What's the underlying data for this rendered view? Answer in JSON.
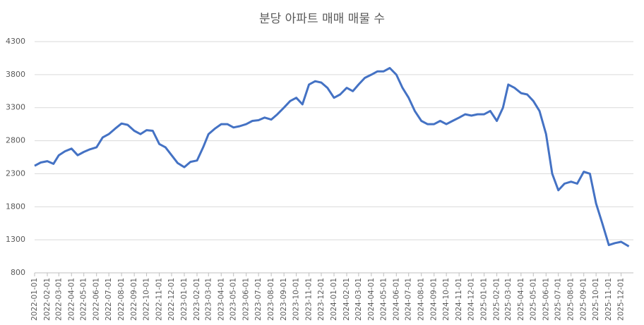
{
  "chart_data": {
    "type": "line",
    "title": "분당 아파트 매매 매물 수",
    "x": [
      "2022-01-01",
      "2022-01-16",
      "2022-02-01",
      "2022-02-16",
      "2022-03-01",
      "2022-03-16",
      "2022-04-01",
      "2022-04-16",
      "2022-05-01",
      "2022-05-16",
      "2022-06-01",
      "2022-06-16",
      "2022-07-01",
      "2022-07-16",
      "2022-08-01",
      "2022-08-16",
      "2022-09-01",
      "2022-09-16",
      "2022-10-01",
      "2022-10-16",
      "2022-11-01",
      "2022-11-16",
      "2022-12-01",
      "2022-12-16",
      "2023-01-01",
      "2023-01-16",
      "2023-02-01",
      "2023-02-16",
      "2023-03-01",
      "2023-03-16",
      "2023-04-01",
      "2023-04-16",
      "2023-05-01",
      "2023-05-16",
      "2023-06-01",
      "2023-06-16",
      "2023-07-01",
      "2023-07-16",
      "2023-08-01",
      "2023-08-16",
      "2023-09-01",
      "2023-09-16",
      "2023-10-01",
      "2023-10-16",
      "2023-11-01",
      "2023-11-16",
      "2023-12-01",
      "2023-12-16",
      "2024-01-01",
      "2024-01-16",
      "2024-02-01",
      "2024-02-16",
      "2024-03-01",
      "2024-03-16",
      "2024-04-01",
      "2024-04-16",
      "2024-05-01",
      "2024-05-16",
      "2024-06-01",
      "2024-06-16",
      "2024-07-01",
      "2024-07-16",
      "2024-08-01",
      "2024-08-16",
      "2024-09-01",
      "2024-09-16",
      "2024-10-01",
      "2024-10-16",
      "2024-11-01",
      "2024-11-16",
      "2024-12-01",
      "2024-12-16",
      "2025-01-01",
      "2025-01-16",
      "2025-02-01",
      "2025-02-16",
      "2025-03-01",
      "2025-03-16",
      "2025-04-01",
      "2025-04-16",
      "2025-05-01",
      "2025-05-16",
      "2025-06-01",
      "2025-06-16",
      "2025-07-01",
      "2025-07-16",
      "2025-08-01",
      "2025-08-16",
      "2025-09-01",
      "2025-09-16",
      "2025-10-01",
      "2025-10-16",
      "2025-11-01",
      "2025-11-16",
      "2025-12-01",
      "2025-12-20"
    ],
    "series": [
      {
        "name": "매물 수",
        "color": "#4472c4",
        "values": [
          2420,
          2470,
          2490,
          2450,
          2580,
          2640,
          2680,
          2580,
          2630,
          2670,
          2700,
          2850,
          2900,
          2980,
          3060,
          3040,
          2950,
          2900,
          2960,
          2950,
          2750,
          2700,
          2580,
          2460,
          2400,
          2480,
          2500,
          2700,
          2900,
          2980,
          3050,
          3050,
          3000,
          3020,
          3050,
          3100,
          3110,
          3150,
          3120,
          3200,
          3300,
          3400,
          3450,
          3350,
          3650,
          3700,
          3680,
          3600,
          3450,
          3500,
          3600,
          3550,
          3650,
          3750,
          3800,
          3850,
          3850,
          3900,
          3800,
          3600,
          3450,
          3250,
          3100,
          3050,
          3050,
          3100,
          3050,
          3100,
          3150,
          3200,
          3180,
          3200,
          3200,
          3250,
          3100,
          3300,
          3650,
          3600,
          3520,
          3500,
          3400,
          3250,
          2900,
          2300,
          2050,
          2150,
          2180,
          2150,
          2330,
          2300,
          1850,
          1550,
          1220,
          1250,
          1270,
          1200
        ]
      }
    ],
    "xlim": [
      "2022-01-01",
      "2025-12-31"
    ],
    "xticks": [
      "2022-01-01",
      "2022-02-01",
      "2022-03-01",
      "2022-04-01",
      "2022-05-01",
      "2022-06-01",
      "2022-07-01",
      "2022-08-01",
      "2022-09-01",
      "2022-10-01",
      "2022-11-01",
      "2022-12-01",
      "2023-01-01",
      "2023-02-01",
      "2023-03-01",
      "2023-04-01",
      "2023-05-01",
      "2023-06-01",
      "2023-07-01",
      "2023-08-01",
      "2023-09-01",
      "2023-10-01",
      "2023-11-01",
      "2023-12-01",
      "2024-01-01",
      "2024-02-01",
      "2024-03-01",
      "2024-04-01",
      "2024-05-01",
      "2024-06-01",
      "2024-07-01",
      "2024-08-01",
      "2024-09-01",
      "2024-10-01",
      "2024-11-01",
      "2024-12-01",
      "2025-01-01",
      "2025-02-01",
      "2025-03-01",
      "2025-04-01",
      "2025-05-01",
      "2025-06-01",
      "2025-07-01",
      "2025-08-01",
      "2025-09-01",
      "2025-10-01",
      "2025-11-01",
      "2025-12-01"
    ],
    "ylim": [
      800,
      4300
    ],
    "yticks": [
      800,
      1300,
      1800,
      2300,
      2800,
      3300,
      3800,
      4300
    ],
    "grid": true
  }
}
